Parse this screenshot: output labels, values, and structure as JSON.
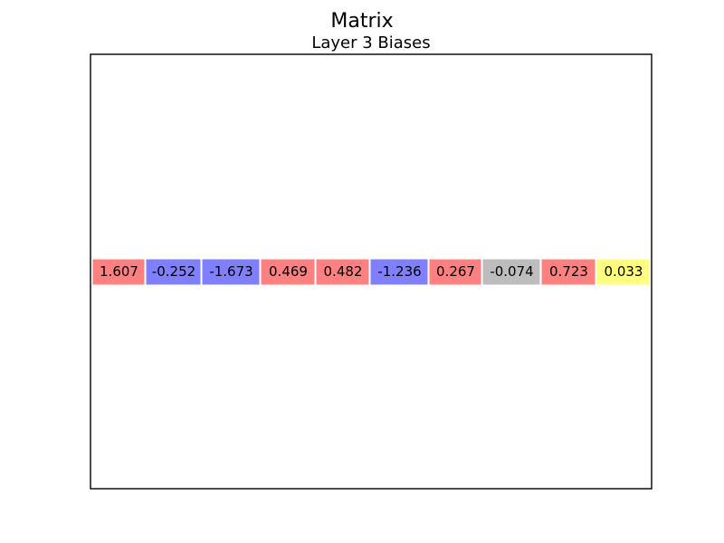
{
  "figure": {
    "suptitle": "Matrix"
  },
  "chart_data": {
    "type": "table",
    "title": "Layer 3 Biases",
    "xlabel": "",
    "ylabel": "",
    "grid": false,
    "rows": 1,
    "cols": 10,
    "values": [
      1.607,
      -0.252,
      -1.673,
      0.469,
      0.482,
      -1.236,
      0.267,
      -0.074,
      0.723,
      0.033
    ],
    "labels": [
      "1.607",
      "-0.252",
      "-1.673",
      "0.469",
      "0.482",
      "-1.236",
      "0.267",
      "-0.074",
      "0.723",
      "0.033"
    ],
    "cell_colors": [
      "#ff8080",
      "#8080ff",
      "#8080ff",
      "#ff8080",
      "#ff8080",
      "#8080ff",
      "#ff8080",
      "#bdbdbd",
      "#ff8080",
      "#ffff80"
    ]
  }
}
